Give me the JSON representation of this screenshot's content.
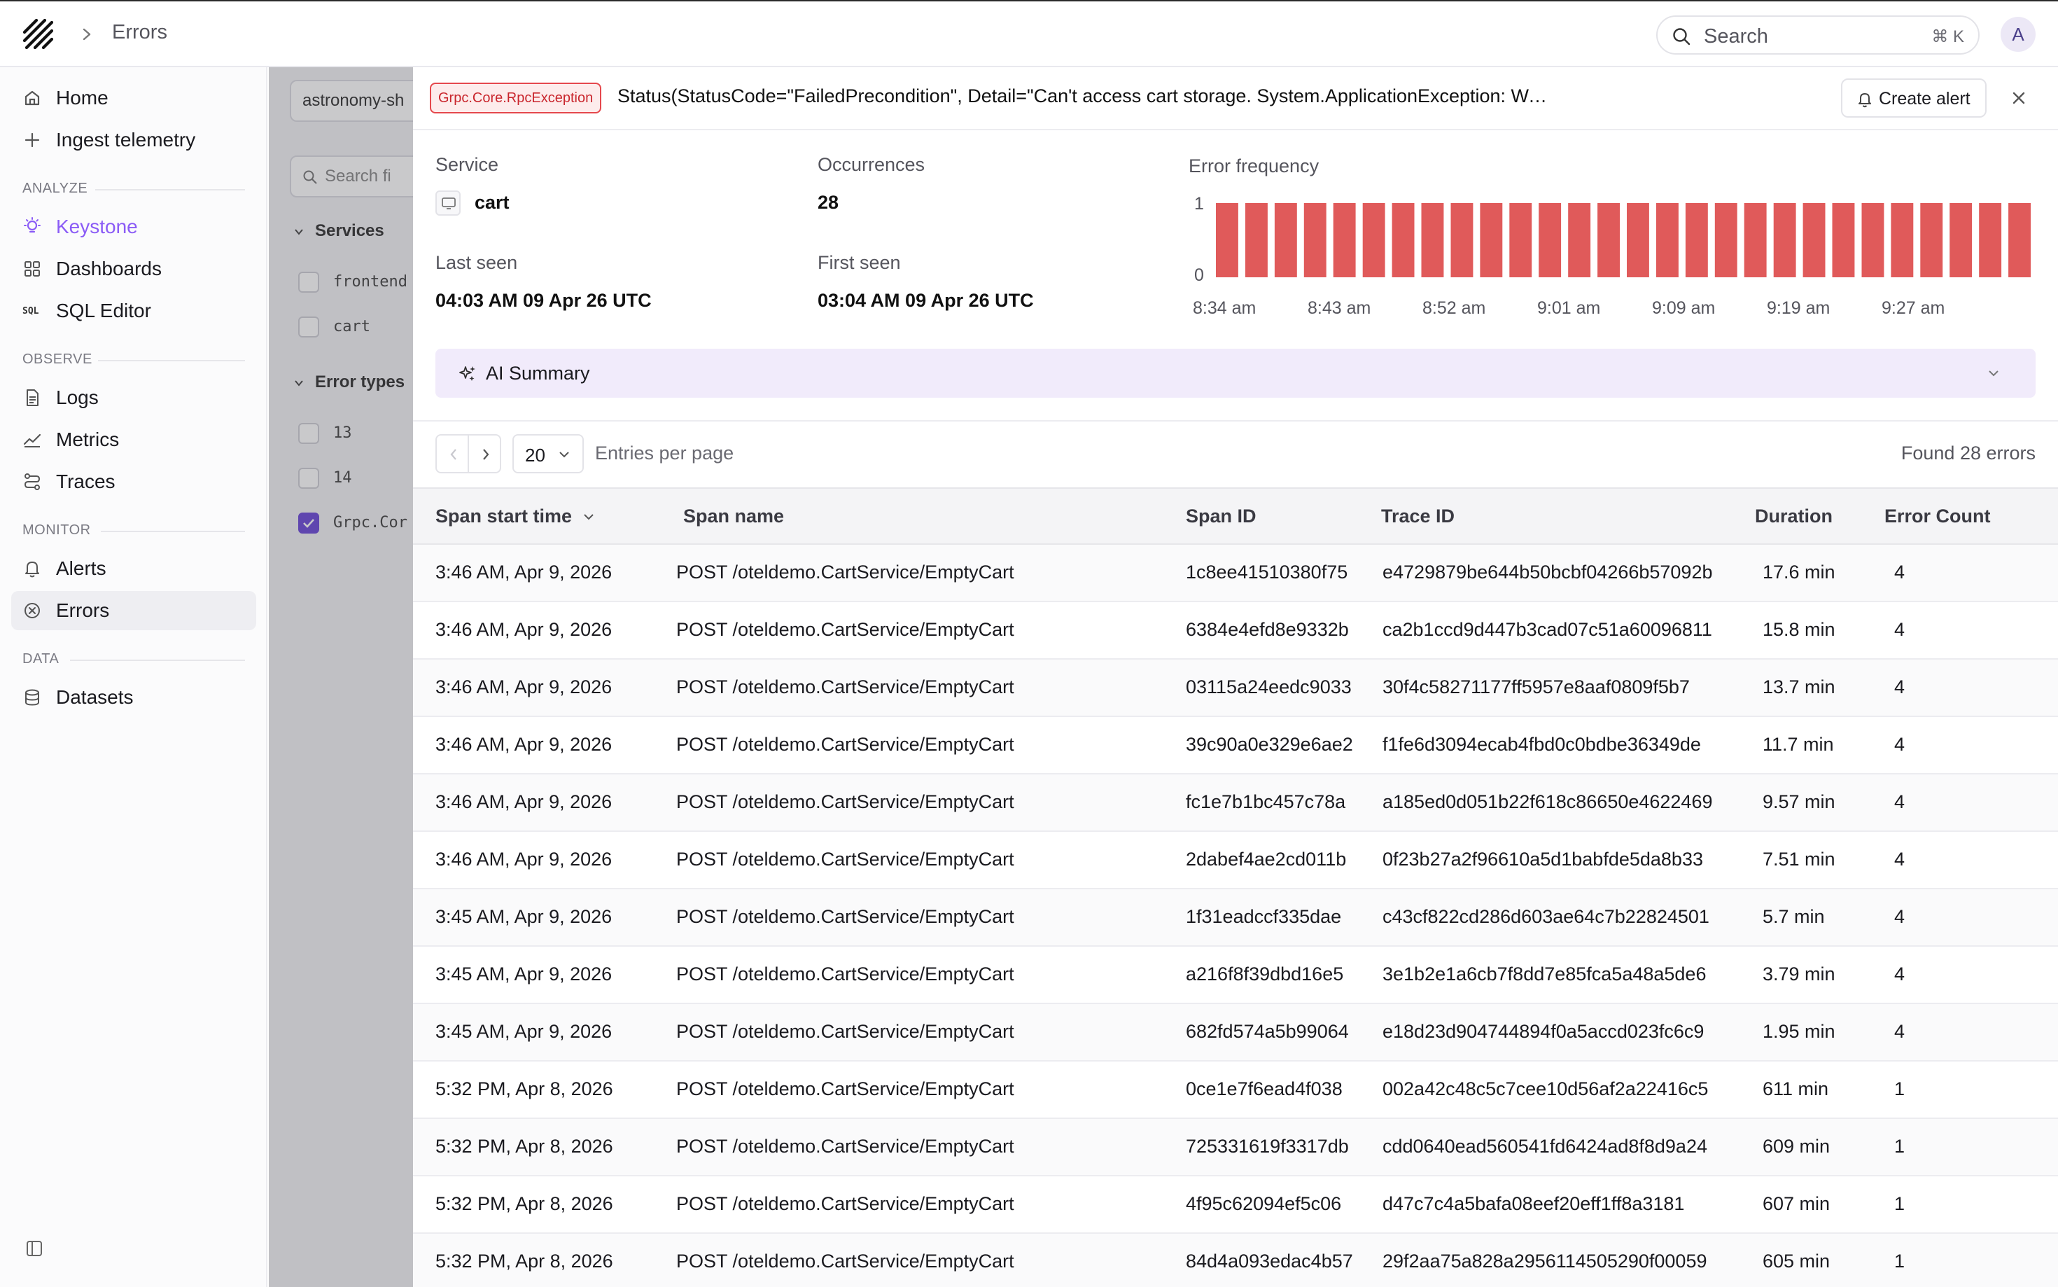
{
  "topbar": {
    "breadcrumb_title": "Errors",
    "search_placeholder": "Search",
    "search_shortcut": "⌘ K",
    "avatar_initial": "A"
  },
  "sidebar": {
    "top_items": [
      {
        "label": "Home",
        "icon": "home-icon"
      },
      {
        "label": "Ingest telemetry",
        "icon": "plus-icon"
      }
    ],
    "analyze_header": "ANALYZE",
    "analyze_items": [
      {
        "label": "Keystone",
        "icon": "lightbulb-icon"
      },
      {
        "label": "Dashboards",
        "icon": "dashboard-icon"
      },
      {
        "label": "SQL Editor",
        "icon": "sql-icon"
      }
    ],
    "sql_icon_text": "SQL",
    "observe_header": "OBSERVE",
    "observe_items": [
      {
        "label": "Logs",
        "icon": "document-icon"
      },
      {
        "label": "Metrics",
        "icon": "chart-line-icon"
      },
      {
        "label": "Traces",
        "icon": "traces-icon"
      }
    ],
    "monitor_header": "MONITOR",
    "monitor_items": [
      {
        "label": "Alerts",
        "icon": "bell-icon"
      },
      {
        "label": "Errors",
        "icon": "x-circle-icon"
      }
    ],
    "data_header": "DATA",
    "data_items": [
      {
        "label": "Datasets",
        "icon": "database-icon"
      }
    ]
  },
  "background_panel": {
    "dataset_select": "astronomy-sh",
    "search_placeholder": "Search fi",
    "services_header": "Services",
    "services": [
      "frontend",
      "cart"
    ],
    "error_types_header": "Error types",
    "error_types": [
      "13",
      "14",
      "Grpc.Cor"
    ]
  },
  "detail": {
    "exception_type": "Grpc.Core.RpcException",
    "status_message": "Status(StatusCode=\"FailedPrecondition\", Detail=\"Can't access cart storage. System.ApplicationException: Wasn't able to connect to ...",
    "create_alert_label": "Create alert",
    "service_label": "Service",
    "service_value": "cart",
    "occurrences_label": "Occurrences",
    "occurrences_value": "28",
    "last_seen_label": "Last seen",
    "last_seen_value": "04:03 AM 09 Apr 26 UTC",
    "first_seen_label": "First seen",
    "first_seen_value": "03:04 AM 09 Apr 26 UTC",
    "error_frequency_label": "Error frequency",
    "ai_summary_label": "AI Summary",
    "per_page_value": "20",
    "entries_per_page_label": "Entries per page",
    "found_label": "Found 28 errors",
    "table": {
      "headers": [
        "Span start time",
        "Span name",
        "Span ID",
        "Trace ID",
        "Duration",
        "Error Count"
      ],
      "rows": [
        [
          "3:46 AM, Apr 9, 2026",
          "POST /oteldemo.CartService/EmptyCart",
          "1c8ee41510380f75",
          "e4729879be644b50bcbf04266b57092b",
          "17.6 min",
          "4"
        ],
        [
          "3:46 AM, Apr 9, 2026",
          "POST /oteldemo.CartService/EmptyCart",
          "6384e4efd8e9332b",
          "ca2b1ccd9d447b3cad07c51a60096811",
          "15.8 min",
          "4"
        ],
        [
          "3:46 AM, Apr 9, 2026",
          "POST /oteldemo.CartService/EmptyCart",
          "03115a24eedc9033",
          "30f4c58271177ff5957e8aaf0809f5b7",
          "13.7 min",
          "4"
        ],
        [
          "3:46 AM, Apr 9, 2026",
          "POST /oteldemo.CartService/EmptyCart",
          "39c90a0e329e6ae2",
          "f1fe6d3094ecab4fbd0c0bdbe36349de",
          "11.7 min",
          "4"
        ],
        [
          "3:46 AM, Apr 9, 2026",
          "POST /oteldemo.CartService/EmptyCart",
          "fc1e7b1bc457c78a",
          "a185ed0d051b22f618c86650e4622469",
          "9.57 min",
          "4"
        ],
        [
          "3:46 AM, Apr 9, 2026",
          "POST /oteldemo.CartService/EmptyCart",
          "2dabef4ae2cd011b",
          "0f23b27a2f96610a5d1babfde5da8b33",
          "7.51 min",
          "4"
        ],
        [
          "3:45 AM, Apr 9, 2026",
          "POST /oteldemo.CartService/EmptyCart",
          "1f31eadccf335dae",
          "c43cf822cd286d603ae64c7b22824501",
          "5.7 min",
          "4"
        ],
        [
          "3:45 AM, Apr 9, 2026",
          "POST /oteldemo.CartService/EmptyCart",
          "a216f8f39dbd16e5",
          "3e1b2e1a6cb7f8dd7e85fca5a48a5de6",
          "3.79 min",
          "4"
        ],
        [
          "3:45 AM, Apr 9, 2026",
          "POST /oteldemo.CartService/EmptyCart",
          "682fd574a5b99064",
          "e18d23d904744894f0a5accd023fc6c9",
          "1.95 min",
          "4"
        ],
        [
          "5:32 PM, Apr 8, 2026",
          "POST /oteldemo.CartService/EmptyCart",
          "0ce1e7f6ead4f038",
          "002a42c48c5c7cee10d56af2a22416c5",
          "611 min",
          "1"
        ],
        [
          "5:32 PM, Apr 8, 2026",
          "POST /oteldemo.CartService/EmptyCart",
          "725331619f3317db",
          "cdd0640ead560541fd6424ad8f8d9a24",
          "609 min",
          "1"
        ],
        [
          "5:32 PM, Apr 8, 2026",
          "POST /oteldemo.CartService/EmptyCart",
          "4f95c62094ef5c06",
          "d47c7c4a5bafa08eef20eff1ff8a3181",
          "607 min",
          "1"
        ],
        [
          "5:32 PM, Apr 8, 2026",
          "POST /oteldemo.CartService/EmptyCart",
          "84d4a093edac4b57",
          "29f2aa75a828a2956114505290f00059",
          "605 min",
          "1"
        ]
      ]
    }
  },
  "chart_data": {
    "type": "bar",
    "bar_count": 28,
    "values": [
      1,
      1,
      1,
      1,
      1,
      1,
      1,
      1,
      1,
      1,
      1,
      1,
      1,
      1,
      1,
      1,
      1,
      1,
      1,
      1,
      1,
      1,
      1,
      1,
      1,
      1,
      1,
      1
    ],
    "x_tick_labels": [
      "8:34 am",
      "8:43 am",
      "8:52 am",
      "9:01 am",
      "9:09 am",
      "9:19 am",
      "9:27 am"
    ],
    "y_tick_labels": [
      "1",
      "0"
    ],
    "ylim": [
      0,
      1
    ],
    "bar_color": "#e05a5a",
    "grid": false,
    "legend": false
  },
  "colors": {
    "accent": "#8b5cf6",
    "error": "#e05a5a",
    "badge_border": "#e5484d",
    "ai_bar_bg": "#f1ebfb"
  }
}
